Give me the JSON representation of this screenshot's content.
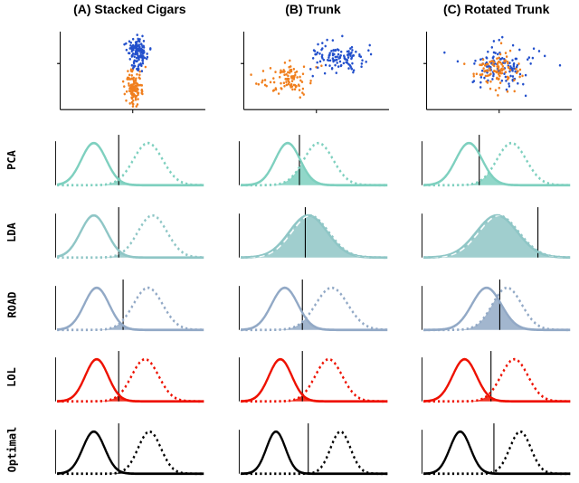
{
  "figure": {
    "columns": [
      {
        "id": "A",
        "title": "(A) Stacked Cigars"
      },
      {
        "id": "B",
        "title": "(B) Trunk"
      },
      {
        "id": "C",
        "title": "(C) Rotated Trunk"
      }
    ],
    "rows": [
      {
        "id": "pca",
        "label": "PCA"
      },
      {
        "id": "lda",
        "label": "LDA"
      },
      {
        "id": "road",
        "label": "ROAD"
      },
      {
        "id": "lol",
        "label": "LOL"
      },
      {
        "id": "optimal",
        "label": "Optimal"
      }
    ]
  },
  "chart_data": {
    "type": "figure-grid",
    "description_rows": [
      "scatter of two classes per setting",
      "projected class-conditional densities per method with classification threshold"
    ],
    "scatter_row": {
      "type": "scatter",
      "class_colors": {
        "class1": "#2350cc",
        "class2": "#f07f1e"
      },
      "plots": [
        {
          "title": "(A) Stacked Cigars",
          "clusters": [
            {
              "class": "class2",
              "cx": 0.5,
              "cy": 0.7,
              "sx": 0.03,
              "sy": 0.13,
              "n": 110
            },
            {
              "class": "class1",
              "cx": 0.53,
              "cy": 0.27,
              "sx": 0.035,
              "sy": 0.11,
              "n": 130
            }
          ]
        },
        {
          "title": "(B) Trunk",
          "clusters": [
            {
              "class": "class2",
              "cx": 0.3,
              "cy": 0.63,
              "sx": 0.085,
              "sy": 0.1,
              "n": 95
            },
            {
              "class": "class1",
              "cx": 0.66,
              "cy": 0.33,
              "sx": 0.085,
              "sy": 0.1,
              "n": 115
            }
          ]
        },
        {
          "title": "(C) Rotated Trunk",
          "clusters": [
            {
              "class": "class1",
              "cx": 0.52,
              "cy": 0.45,
              "sx": 0.12,
              "sy": 0.14,
              "n": 120
            },
            {
              "class": "class2",
              "cx": 0.47,
              "cy": 0.5,
              "sx": 0.09,
              "sy": 0.11,
              "n": 100
            }
          ]
        }
      ]
    },
    "density_rows": [
      {
        "method": "PCA",
        "color": "#7ed0bf",
        "cells": [
          {
            "solid": {
              "mu": 0.25,
              "sigma": 0.085
            },
            "dashed": {
              "mu": 0.62,
              "sigma": 0.1
            },
            "threshold": 0.42,
            "dashed_on_fill": false
          },
          {
            "solid": {
              "mu": 0.32,
              "sigma": 0.085
            },
            "dashed": {
              "mu": 0.53,
              "sigma": 0.1
            },
            "threshold": 0.4,
            "dashed_on_fill": false
          },
          {
            "solid": {
              "mu": 0.31,
              "sigma": 0.09
            },
            "dashed": {
              "mu": 0.6,
              "sigma": 0.1
            },
            "threshold": 0.38,
            "dashed_on_fill": false
          }
        ]
      },
      {
        "method": "LDA",
        "color": "#8fc6c6",
        "cells": [
          {
            "solid": {
              "mu": 0.25,
              "sigma": 0.09
            },
            "dashed": {
              "mu": 0.65,
              "sigma": 0.1
            },
            "threshold": 0.42,
            "dashed_on_fill": false
          },
          {
            "solid": {
              "mu": 0.46,
              "sigma": 0.13
            },
            "dashed": {
              "mu": 0.47,
              "sigma": 0.13
            },
            "threshold": 0.44,
            "dashed_on_fill": true
          },
          {
            "solid": {
              "mu": 0.5,
              "sigma": 0.14
            },
            "dashed": {
              "mu": 0.51,
              "sigma": 0.14
            },
            "threshold": 0.78,
            "dashed_on_fill": true
          }
        ]
      },
      {
        "method": "ROAD",
        "color": "#92a9c6",
        "cells": [
          {
            "solid": {
              "mu": 0.27,
              "sigma": 0.085
            },
            "dashed": {
              "mu": 0.62,
              "sigma": 0.1
            },
            "threshold": 0.45,
            "dashed_on_fill": false
          },
          {
            "solid": {
              "mu": 0.3,
              "sigma": 0.09
            },
            "dashed": {
              "mu": 0.62,
              "sigma": 0.11
            },
            "threshold": 0.42,
            "dashed_on_fill": false
          },
          {
            "solid": {
              "mu": 0.43,
              "sigma": 0.1
            },
            "dashed": {
              "mu": 0.57,
              "sigma": 0.1
            },
            "threshold": 0.52,
            "dashed_on_fill": false
          }
        ]
      },
      {
        "method": "LOL",
        "color": "#ee1100",
        "cells": [
          {
            "solid": {
              "mu": 0.27,
              "sigma": 0.078
            },
            "dashed": {
              "mu": 0.6,
              "sigma": 0.092
            },
            "threshold": 0.42,
            "dashed_on_fill": false
          },
          {
            "solid": {
              "mu": 0.27,
              "sigma": 0.078
            },
            "dashed": {
              "mu": 0.6,
              "sigma": 0.092
            },
            "threshold": 0.42,
            "dashed_on_fill": false
          },
          {
            "solid": {
              "mu": 0.28,
              "sigma": 0.082
            },
            "dashed": {
              "mu": 0.62,
              "sigma": 0.092
            },
            "threshold": 0.46,
            "dashed_on_fill": false
          }
        ]
      },
      {
        "method": "Optimal",
        "color": "#000000",
        "cells": [
          {
            "solid": {
              "mu": 0.25,
              "sigma": 0.075
            },
            "dashed": {
              "mu": 0.63,
              "sigma": 0.078
            },
            "threshold": 0.42,
            "dashed_on_fill": false
          },
          {
            "solid": {
              "mu": 0.24,
              "sigma": 0.065
            },
            "dashed": {
              "mu": 0.68,
              "sigma": 0.068
            },
            "threshold": 0.46,
            "dashed_on_fill": false
          },
          {
            "solid": {
              "mu": 0.25,
              "sigma": 0.07
            },
            "dashed": {
              "mu": 0.66,
              "sigma": 0.072
            },
            "threshold": 0.48,
            "dashed_on_fill": false
          }
        ]
      }
    ]
  }
}
